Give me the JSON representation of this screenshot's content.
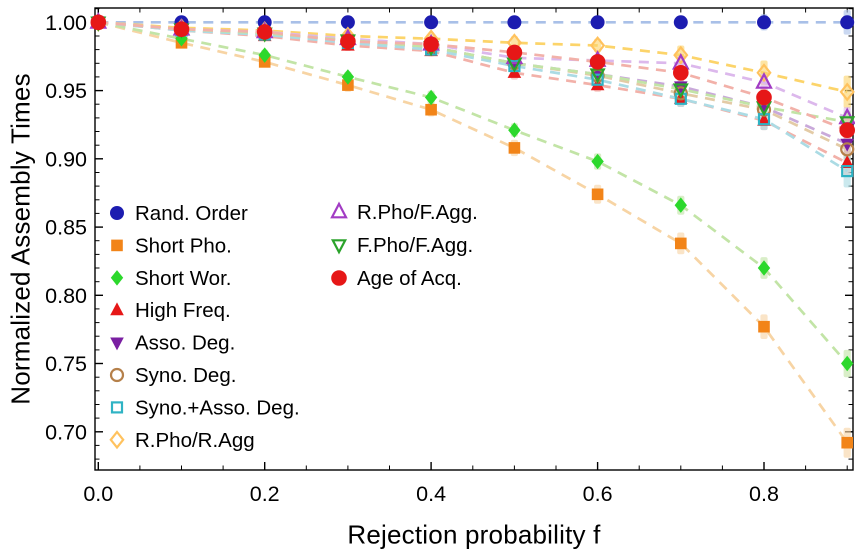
{
  "chart_data": {
    "type": "scatter",
    "title": "",
    "xlabel": "Rejection probability f",
    "ylabel": "Normalized Assembly Times",
    "xlim": [
      -0.004,
      0.907
    ],
    "ylim": [
      0.672,
      1.0105
    ],
    "grid": false,
    "frame": "box-with-inward-ticks-all-sides",
    "line_style": "dashed",
    "legend_position": "inside lower-left, two columns",
    "x": [
      0.0,
      0.1,
      0.2,
      0.3,
      0.4,
      0.5,
      0.6,
      0.7,
      0.8,
      0.9
    ],
    "x_major_ticks": [
      0.0,
      0.2,
      0.4,
      0.6,
      0.8
    ],
    "x_tick_labels": [
      "0.0",
      "0.2",
      "0.4",
      "0.6",
      "0.8"
    ],
    "x_minor_tick_step": 0.05,
    "y_major_ticks": [
      0.7,
      0.75,
      0.8,
      0.85,
      0.9,
      0.95,
      1.0
    ],
    "y_tick_labels": [
      "0.70",
      "0.75",
      "0.80",
      "0.85",
      "0.90",
      "0.95",
      "1.00"
    ],
    "y_minor_tick_step": 0.01,
    "legend_columns": [
      [
        0,
        1,
        2,
        3,
        4,
        5,
        6,
        7
      ],
      [
        8,
        9,
        10
      ]
    ],
    "series": [
      {
        "name": "Rand. Order",
        "marker": "circle",
        "filled": true,
        "color": "#1c1cb0",
        "line_color": "#a9c0e8",
        "size": 7,
        "values": [
          1.0,
          1.0,
          1.0,
          1.0,
          1.0,
          1.0,
          1.0,
          1.0,
          1.0,
          1.0
        ],
        "err": [
          0.0,
          0.002,
          0.003,
          0.003,
          0.004,
          0.004,
          0.005,
          0.005,
          0.006,
          0.009
        ]
      },
      {
        "name": "Short Pho.",
        "marker": "square",
        "filled": true,
        "color": "#f28418",
        "line_color": "#f7d4a4",
        "size": 5.8,
        "values": [
          1.0,
          0.985,
          0.971,
          0.954,
          0.936,
          0.908,
          0.874,
          0.838,
          0.777,
          0.692
        ],
        "err": [
          0.0,
          0.003,
          0.004,
          0.005,
          0.005,
          0.006,
          0.007,
          0.008,
          0.009,
          0.011
        ]
      },
      {
        "name": "Short Wor.",
        "marker": "diamond",
        "filled": true,
        "color": "#2cd82c",
        "line_color": "#c2e4a6",
        "size": 6.2,
        "values": [
          1.0,
          0.988,
          0.976,
          0.96,
          0.945,
          0.921,
          0.898,
          0.866,
          0.82,
          0.75
        ],
        "err": [
          0.0,
          0.003,
          0.004,
          0.004,
          0.005,
          0.005,
          0.006,
          0.007,
          0.008,
          0.01
        ]
      },
      {
        "name": "High Freq.",
        "marker": "triangle-up",
        "filled": true,
        "color": "#e61717",
        "line_color": "#f2b1a9",
        "size": 6.8,
        "values": [
          1.0,
          0.994,
          0.99,
          0.983,
          0.979,
          0.963,
          0.954,
          0.944,
          0.928,
          0.897
        ],
        "err": [
          0.0,
          0.002,
          0.003,
          0.004,
          0.004,
          0.005,
          0.005,
          0.006,
          0.007,
          0.009
        ]
      },
      {
        "name": "Asso. Deg.",
        "marker": "triangle-down",
        "filled": true,
        "color": "#7a1fa2",
        "line_color": "#c9a9da",
        "size": 6.8,
        "values": [
          1.0,
          0.995,
          0.992,
          0.986,
          0.982,
          0.97,
          0.962,
          0.953,
          0.938,
          0.911
        ],
        "err": [
          0.0,
          0.002,
          0.003,
          0.003,
          0.004,
          0.004,
          0.005,
          0.005,
          0.007,
          0.008
        ]
      },
      {
        "name": "Syno. Deg.",
        "marker": "circle",
        "filled": false,
        "color": "#b5804a",
        "line_color": "#e3cba6",
        "size": 6,
        "values": [
          1.0,
          0.995,
          0.992,
          0.986,
          0.982,
          0.97,
          0.961,
          0.948,
          0.936,
          0.907
        ],
        "err": [
          0.0,
          0.002,
          0.003,
          0.003,
          0.004,
          0.004,
          0.005,
          0.006,
          0.007,
          0.008
        ]
      },
      {
        "name": "Syno.+Asso. Deg.",
        "marker": "square",
        "filled": false,
        "color": "#2fb3c4",
        "line_color": "#abdbe4",
        "size": 5,
        "values": [
          1.0,
          0.994,
          0.991,
          0.985,
          0.98,
          0.968,
          0.958,
          0.944,
          0.929,
          0.891
        ],
        "err": [
          0.0,
          0.002,
          0.003,
          0.004,
          0.004,
          0.005,
          0.005,
          0.006,
          0.008,
          0.012
        ]
      },
      {
        "name": "R.Pho/R.Agg",
        "marker": "diamond",
        "filled": false,
        "color": "#ffc25e",
        "line_color": "#fcd46a",
        "size": 6.2,
        "values": [
          1.0,
          0.996,
          0.994,
          0.99,
          0.988,
          0.985,
          0.983,
          0.976,
          0.963,
          0.949
        ],
        "err": [
          0.0,
          0.002,
          0.003,
          0.004,
          0.004,
          0.005,
          0.005,
          0.007,
          0.009,
          0.012
        ]
      },
      {
        "name": "R.Pho/F.Agg.",
        "marker": "triangle-up",
        "filled": false,
        "color": "#a23cc4",
        "line_color": "#dcb8ec",
        "size": 7,
        "values": [
          1.0,
          0.995,
          0.993,
          0.988,
          0.984,
          0.974,
          0.972,
          0.97,
          0.956,
          0.93
        ],
        "err": [
          0.0,
          0.002,
          0.003,
          0.003,
          0.004,
          0.004,
          0.005,
          0.006,
          0.007,
          0.008
        ]
      },
      {
        "name": "F.Pho/F.Agg.",
        "marker": "triangle-down",
        "filled": false,
        "color": "#2ba32b",
        "line_color": "#c2e4a6",
        "size": 6.2,
        "values": [
          1.0,
          0.995,
          0.992,
          0.987,
          0.982,
          0.97,
          0.962,
          0.951,
          0.938,
          0.927
        ],
        "err": [
          0.0,
          0.002,
          0.003,
          0.003,
          0.004,
          0.004,
          0.005,
          0.006,
          0.007,
          0.008
        ]
      },
      {
        "name": "Age of Acq.",
        "marker": "circle",
        "filled": true,
        "color": "#e61717",
        "line_color": "#f2b1a9",
        "size": 7.8,
        "values": [
          1.0,
          0.995,
          0.993,
          0.986,
          0.984,
          0.978,
          0.971,
          0.963,
          0.945,
          0.921
        ],
        "err": [
          0.0,
          0.002,
          0.003,
          0.003,
          0.004,
          0.004,
          0.005,
          0.006,
          0.007,
          0.009
        ]
      }
    ]
  }
}
